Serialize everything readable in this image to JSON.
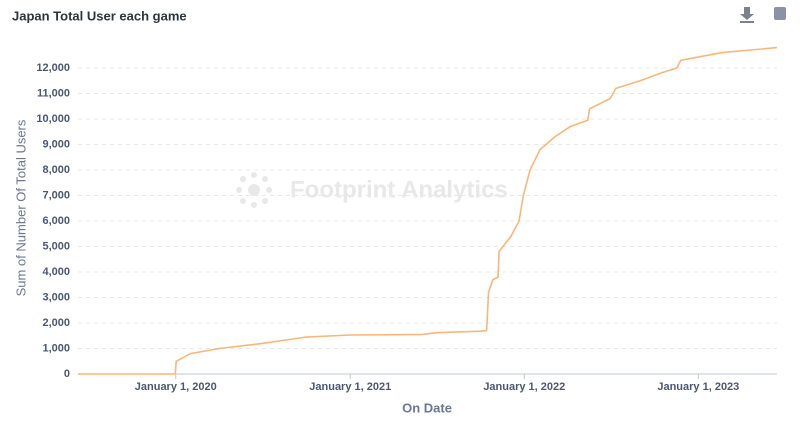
{
  "chart_data": {
    "type": "line",
    "title": "Japan Total User each game",
    "x_label": "On Date",
    "y_label": "Sum of Number Of Total Users",
    "watermark": "Footprint Analytics",
    "x": [
      "2019-06-10",
      "2019-12-31",
      "2020-01-02",
      "2020-02-01",
      "2020-04-01",
      "2020-07-01",
      "2020-10-01",
      "2021-01-01",
      "2021-06-01",
      "2021-07-01",
      "2021-10-01",
      "2021-10-14",
      "2021-10-18",
      "2021-10-27",
      "2021-11-07",
      "2021-11-09",
      "2021-12-04",
      "2021-12-21",
      "2021-12-30",
      "2022-01-13",
      "2022-02-03",
      "2022-03-06",
      "2022-04-07",
      "2022-05-14",
      "2022-05-18",
      "2022-06-30",
      "2022-07-12",
      "2022-09-01",
      "2022-10-14",
      "2022-11-17",
      "2022-11-25",
      "2023-02-18",
      "2023-06-15"
    ],
    "series": [
      {
        "name": "Sum of Number Of Total Users",
        "color": "#f9b67a",
        "values": [
          0,
          0,
          500,
          800,
          1000,
          1200,
          1450,
          1530,
          1550,
          1620,
          1680,
          1700,
          3200,
          3700,
          3800,
          4800,
          5400,
          6000,
          7000,
          8000,
          8800,
          9300,
          9700,
          9950,
          10400,
          10800,
          11200,
          11500,
          11800,
          12000,
          12300,
          12600,
          12800
        ]
      }
    ],
    "xlim": [
      "2019-06-10",
      "2023-06-15"
    ],
    "xticks": [
      {
        "value": "2020-01-01",
        "label": "January 1, 2020"
      },
      {
        "value": "2021-01-01",
        "label": "January 1, 2021"
      },
      {
        "value": "2022-01-01",
        "label": "January 1, 2022"
      },
      {
        "value": "2023-01-01",
        "label": "January 1, 2023"
      }
    ],
    "ylim": [
      0,
      13000
    ],
    "yticks": [
      0,
      {
        "value": 1000,
        "label": "1,000"
      },
      {
        "value": 2000,
        "label": "2,000"
      },
      {
        "value": 3000,
        "label": "3,000"
      },
      {
        "value": 4000,
        "label": "4,000"
      },
      {
        "value": 5000,
        "label": "5,000"
      },
      {
        "value": 6000,
        "label": "6,000"
      },
      {
        "value": 7000,
        "label": "7,000"
      },
      {
        "value": 8000,
        "label": "8,000"
      },
      {
        "value": 9000,
        "label": "9,000"
      },
      {
        "value": 10000,
        "label": "10,000"
      },
      {
        "value": 11000,
        "label": "11,000"
      },
      {
        "value": 12000,
        "label": "12,000"
      }
    ],
    "grid": true
  }
}
